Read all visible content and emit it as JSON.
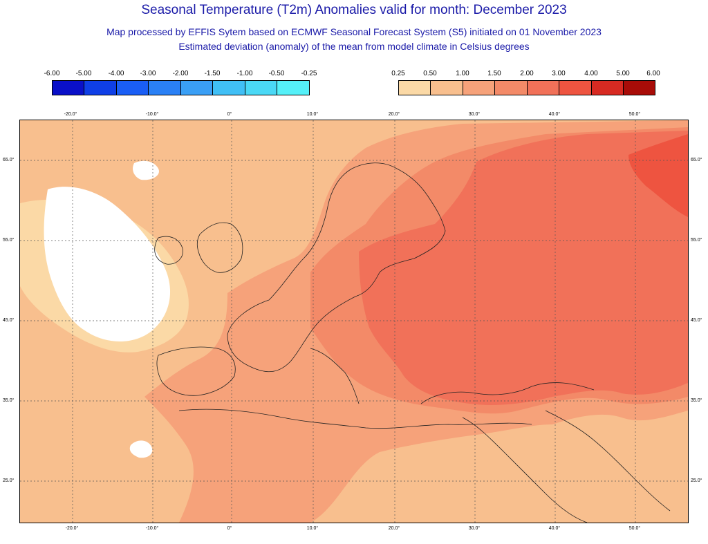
{
  "title": "Seasonal Temperature (T2m) Anomalies valid for month: December 2023",
  "subtitle_line1": "Map processed by EFFIS Sytem based on ECMWF Seasonal Forecast System (S5) initiated on 01 November 2023",
  "subtitle_line2": "Estimated deviation (anomaly) of the mean from model climate in Celsius degrees",
  "colorbar_negative": {
    "labels": [
      "-6.00",
      "-5.00",
      "-4.00",
      "-3.00",
      "-2.00",
      "-1.50",
      "-1.00",
      "-0.50",
      "-0.25"
    ],
    "colors": [
      "#0a10c8",
      "#0f3fe6",
      "#1a5ef5",
      "#2a80f5",
      "#3a9ff5",
      "#40bff5",
      "#4ad8f5",
      "#55f0f8"
    ]
  },
  "colorbar_positive": {
    "labels": [
      "0.25",
      "0.50",
      "1.00",
      "1.50",
      "2.00",
      "3.00",
      "4.00",
      "5.00",
      "6.00"
    ],
    "colors": [
      "#fbd9a6",
      "#f8bf8e",
      "#f6a27a",
      "#f38a68",
      "#f17159",
      "#ee5440",
      "#d72a22",
      "#a80c08"
    ]
  },
  "longitude_ticks": [
    "-20.0°",
    "-10.0°",
    "0°",
    "10.0°",
    "20.0°",
    "30.0°",
    "40.0°",
    "50.0°"
  ],
  "latitude_ticks": [
    "65.0°",
    "55.0°",
    "45.0°",
    "35.0°",
    "25.0°"
  ],
  "map_colors": {
    "ocean_neutral": "#ffffff",
    "anomaly_0_25": "#fbd9a6",
    "anomaly_0_5": "#f8bf8e",
    "anomaly_1_0": "#f6a27a",
    "anomaly_1_5": "#f38a68",
    "anomaly_2_0": "#f17159",
    "anomaly_3_0": "#ee5440"
  }
}
